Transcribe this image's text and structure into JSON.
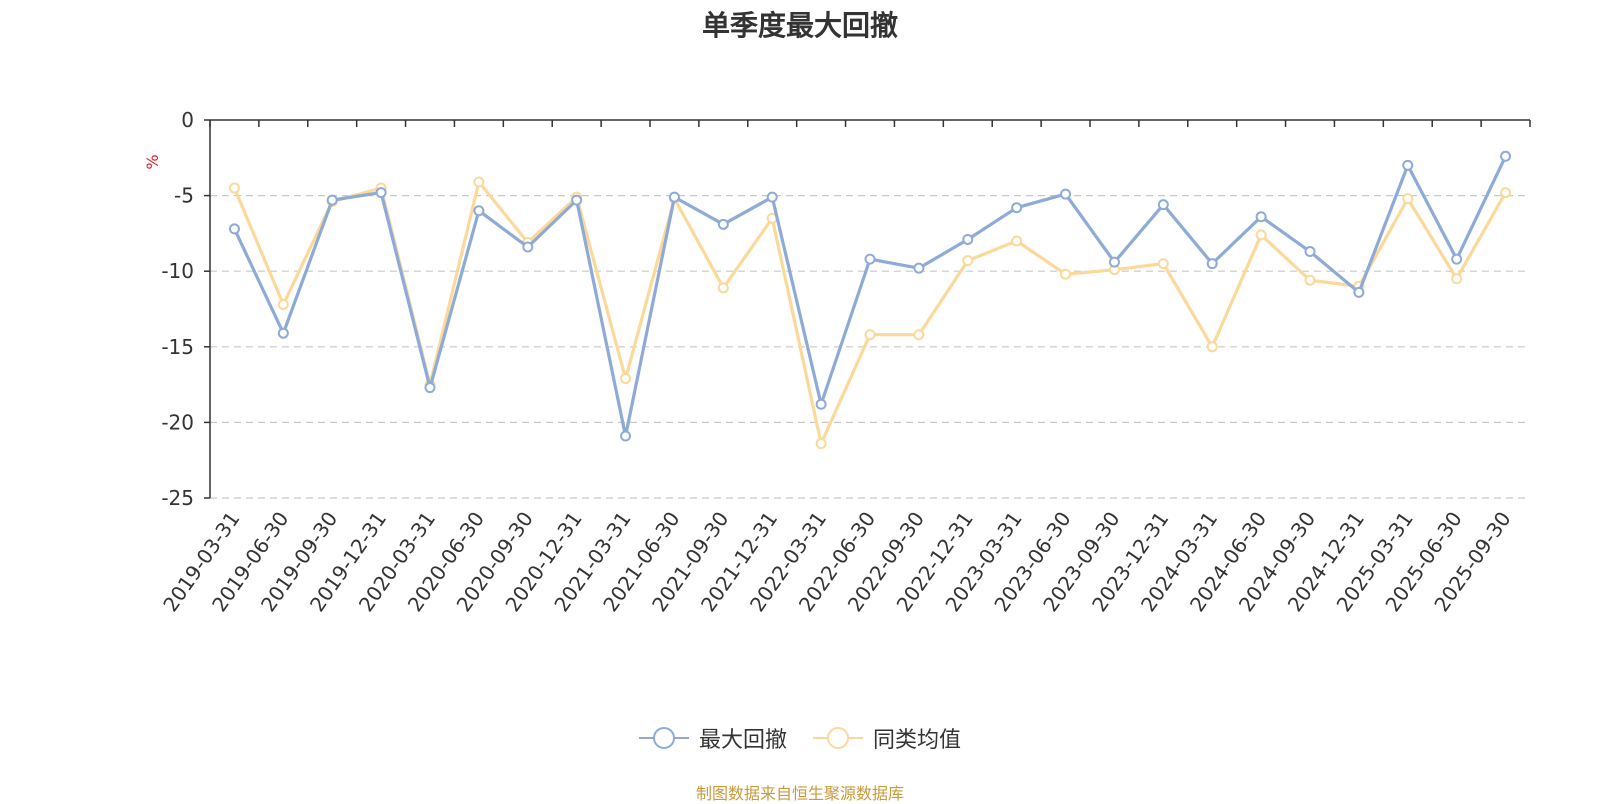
{
  "header": {
    "title": "单季度最大回撤"
  },
  "footer": {
    "source": "制图数据来自恒生聚源数据库"
  },
  "colors": {
    "series1": "#8eaad6",
    "series2": "#fbd99a",
    "grid": "#c8c8c8",
    "axis": "#333333",
    "unit": "#e02020"
  },
  "chart_data": {
    "type": "line",
    "title": "单季度最大回撤",
    "ylabel": "%",
    "ylim": [
      -25,
      0
    ],
    "yticks": [
      0,
      -5,
      -10,
      -15,
      -20,
      -25
    ],
    "grid": true,
    "legend_position": "bottom-center",
    "categories": [
      "2019-03-31",
      "2019-06-30",
      "2019-09-30",
      "2019-12-31",
      "2020-03-31",
      "2020-06-30",
      "2020-09-30",
      "2020-12-31",
      "2021-03-31",
      "2021-06-30",
      "2021-09-30",
      "2021-12-31",
      "2022-03-31",
      "2022-06-30",
      "2022-09-30",
      "2022-12-31",
      "2023-03-31",
      "2023-06-30",
      "2023-09-30",
      "2023-12-31",
      "2024-03-31",
      "2024-06-30",
      "2024-09-30",
      "2024-12-31",
      "2025-03-31",
      "2025-06-30",
      "2025-09-30"
    ],
    "series": [
      {
        "name": "最大回撤",
        "values": [
          -7.2,
          -14.1,
          -5.3,
          -4.8,
          -17.7,
          -6.0,
          -8.4,
          -5.3,
          -20.9,
          -5.1,
          -6.9,
          -5.1,
          -18.8,
          -9.2,
          -9.8,
          -7.9,
          -5.8,
          -4.9,
          -9.4,
          -5.6,
          -9.5,
          -6.4,
          -8.7,
          -11.4,
          -3.0,
          -9.2,
          -2.4
        ]
      },
      {
        "name": "同类均值",
        "values": [
          -4.5,
          -12.2,
          -5.4,
          -4.5,
          -17.5,
          -4.1,
          -8.1,
          -5.1,
          -17.1,
          -5.2,
          -11.1,
          -6.5,
          -21.4,
          -14.2,
          -14.2,
          -9.3,
          -8.0,
          -10.2,
          -9.9,
          -9.5,
          -15.0,
          -7.6,
          -10.6,
          -11.0,
          -5.2,
          -10.5,
          -4.8
        ]
      }
    ]
  }
}
